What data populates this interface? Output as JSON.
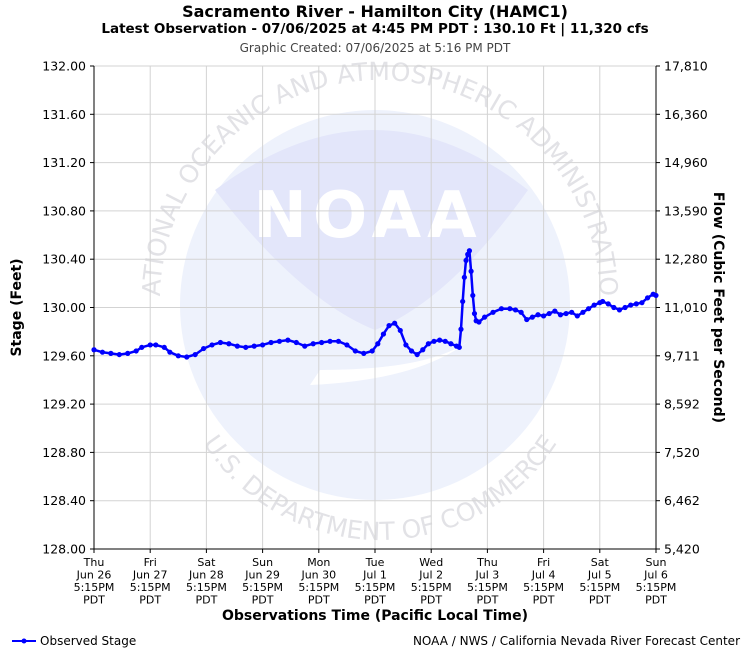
{
  "header": {
    "title": "Sacramento River - Hamilton City (HAMC1)",
    "subtitle": "Latest Observation - 07/06/2025 at 4:45 PM PDT : 130.10 Ft | 11,320 cfs",
    "created": "Graphic Created: 07/06/2025 at 5:16 PM PDT"
  },
  "footer": {
    "legend_label": "Observed Stage",
    "credit": "NOAA / NWS / California Nevada River Forecast Center"
  },
  "watermark": {
    "logo_text": "NOAA",
    "ring_top": "NATIONAL OCEANIC AND ATMOSPHERIC ADMINISTRATION",
    "ring_bottom": "U.S. DEPARTMENT OF COMMERCE",
    "color": "#e6ecfa"
  },
  "chart_data": {
    "type": "line",
    "ylabel": "Stage (Feet)",
    "y2label": "Flow (Cubic Feet per Second)",
    "xlabel": "Observations Time (Pacific Local Time)",
    "ylim": [
      128.0,
      132.0
    ],
    "yticks": [
      "128.00",
      "128.40",
      "128.80",
      "129.20",
      "129.60",
      "130.00",
      "130.40",
      "130.80",
      "131.20",
      "131.60",
      "132.00"
    ],
    "y2ticks": [
      "5,420",
      "6,462",
      "7,520",
      "8,592",
      "9,711",
      "11,010",
      "12,280",
      "13,590",
      "14,960",
      "16,360",
      "17,810"
    ],
    "xlim_days": [
      0,
      10
    ],
    "xticks": [
      [
        "Thu",
        "Jun 26",
        "5:15PM",
        "PDT"
      ],
      [
        "Fri",
        "Jun 27",
        "5:15PM",
        "PDT"
      ],
      [
        "Sat",
        "Jun 28",
        "5:15PM",
        "PDT"
      ],
      [
        "Sun",
        "Jun 29",
        "5:15PM",
        "PDT"
      ],
      [
        "Mon",
        "Jun 30",
        "5:15PM",
        "PDT"
      ],
      [
        "Tue",
        "Jul 1",
        "5:15PM",
        "PDT"
      ],
      [
        "Wed",
        "Jul 2",
        "5:15PM",
        "PDT"
      ],
      [
        "Thu",
        "Jul 3",
        "5:15PM",
        "PDT"
      ],
      [
        "Fri",
        "Jul 4",
        "5:15PM",
        "PDT"
      ],
      [
        "Sat",
        "Jul 5",
        "5:15PM",
        "PDT"
      ],
      [
        "Sun",
        "Jul 6",
        "5:15PM",
        "PDT"
      ]
    ],
    "grid": true,
    "series": [
      {
        "name": "Observed Stage",
        "color": "#0000ff",
        "points": [
          [
            0.0,
            129.65
          ],
          [
            0.15,
            129.63
          ],
          [
            0.3,
            129.62
          ],
          [
            0.45,
            129.61
          ],
          [
            0.6,
            129.62
          ],
          [
            0.75,
            129.64
          ],
          [
            0.85,
            129.67
          ],
          [
            1.0,
            129.69
          ],
          [
            1.1,
            129.69
          ],
          [
            1.25,
            129.67
          ],
          [
            1.35,
            129.63
          ],
          [
            1.5,
            129.6
          ],
          [
            1.65,
            129.59
          ],
          [
            1.8,
            129.61
          ],
          [
            1.95,
            129.66
          ],
          [
            2.1,
            129.69
          ],
          [
            2.25,
            129.71
          ],
          [
            2.4,
            129.7
          ],
          [
            2.55,
            129.68
          ],
          [
            2.7,
            129.67
          ],
          [
            2.85,
            129.68
          ],
          [
            3.0,
            129.69
          ],
          [
            3.15,
            129.71
          ],
          [
            3.3,
            129.72
          ],
          [
            3.45,
            129.73
          ],
          [
            3.6,
            129.71
          ],
          [
            3.75,
            129.68
          ],
          [
            3.9,
            129.7
          ],
          [
            4.05,
            129.71
          ],
          [
            4.2,
            129.72
          ],
          [
            4.35,
            129.72
          ],
          [
            4.5,
            129.69
          ],
          [
            4.65,
            129.64
          ],
          [
            4.8,
            129.62
          ],
          [
            4.95,
            129.64
          ],
          [
            5.05,
            129.7
          ],
          [
            5.15,
            129.78
          ],
          [
            5.25,
            129.85
          ],
          [
            5.35,
            129.87
          ],
          [
            5.45,
            129.81
          ],
          [
            5.55,
            129.69
          ],
          [
            5.65,
            129.64
          ],
          [
            5.75,
            129.61
          ],
          [
            5.85,
            129.65
          ],
          [
            5.95,
            129.7
          ],
          [
            6.05,
            129.72
          ],
          [
            6.15,
            129.73
          ],
          [
            6.25,
            129.72
          ],
          [
            6.35,
            129.7
          ],
          [
            6.45,
            129.68
          ],
          [
            6.5,
            129.67
          ],
          [
            6.53,
            129.82
          ],
          [
            6.56,
            130.05
          ],
          [
            6.59,
            130.25
          ],
          [
            6.62,
            130.39
          ],
          [
            6.65,
            130.44
          ],
          [
            6.68,
            130.47
          ],
          [
            6.71,
            130.3
          ],
          [
            6.74,
            130.1
          ],
          [
            6.77,
            129.95
          ],
          [
            6.8,
            129.89
          ],
          [
            6.85,
            129.88
          ],
          [
            6.95,
            129.92
          ],
          [
            7.1,
            129.96
          ],
          [
            7.25,
            129.99
          ],
          [
            7.4,
            129.99
          ],
          [
            7.5,
            129.98
          ],
          [
            7.6,
            129.96
          ],
          [
            7.7,
            129.9
          ],
          [
            7.8,
            129.92
          ],
          [
            7.9,
            129.94
          ],
          [
            8.0,
            129.93
          ],
          [
            8.1,
            129.95
          ],
          [
            8.2,
            129.97
          ],
          [
            8.3,
            129.94
          ],
          [
            8.4,
            129.95
          ],
          [
            8.5,
            129.96
          ],
          [
            8.6,
            129.93
          ],
          [
            8.7,
            129.96
          ],
          [
            8.8,
            129.99
          ],
          [
            8.9,
            130.02
          ],
          [
            9.0,
            130.04
          ],
          [
            9.05,
            130.05
          ],
          [
            9.15,
            130.03
          ],
          [
            9.25,
            130.0
          ],
          [
            9.35,
            129.98
          ],
          [
            9.45,
            130.0
          ],
          [
            9.55,
            130.02
          ],
          [
            9.65,
            130.03
          ],
          [
            9.75,
            130.04
          ],
          [
            9.85,
            130.08
          ],
          [
            9.95,
            130.11
          ],
          [
            10.0,
            130.1
          ]
        ]
      }
    ]
  }
}
